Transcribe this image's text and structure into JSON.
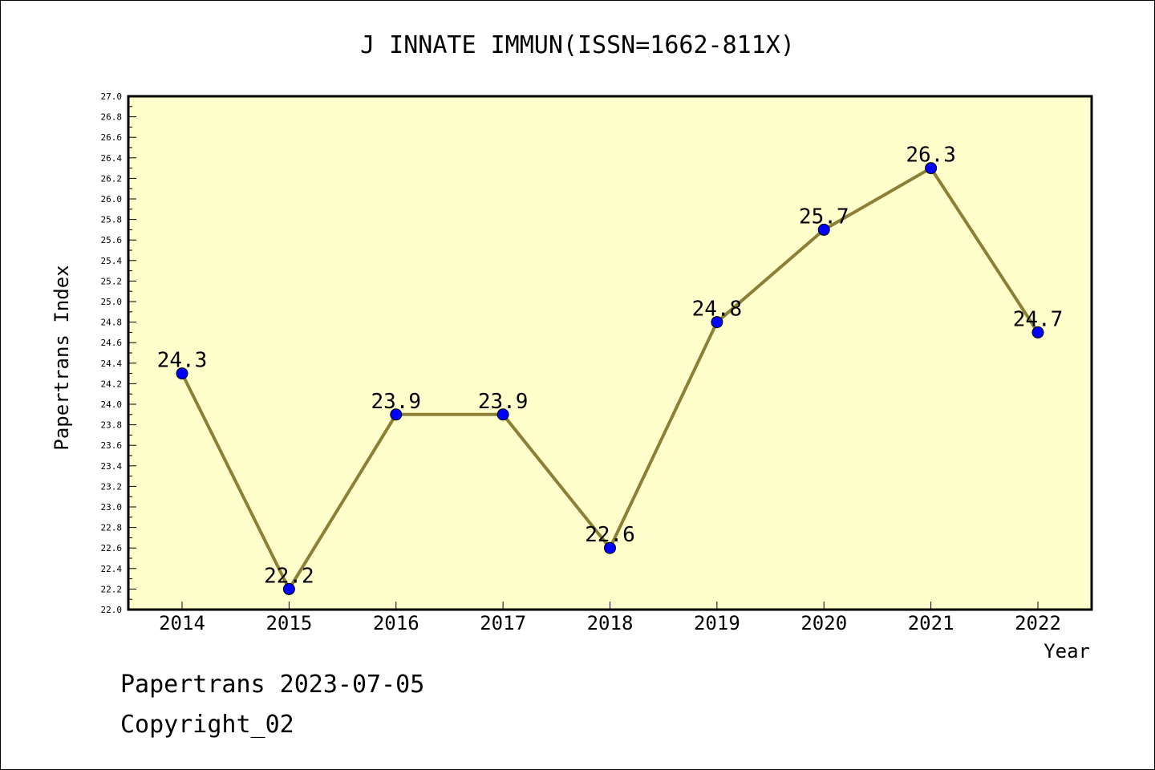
{
  "chart_data": {
    "type": "line",
    "title": "J INNATE IMMUN(ISSN=1662-811X)",
    "xlabel": "Year",
    "ylabel": "Papertrans Index",
    "categories": [
      "2014",
      "2015",
      "2016",
      "2017",
      "2018",
      "2019",
      "2020",
      "2021",
      "2022"
    ],
    "values": [
      24.3,
      22.2,
      23.9,
      23.9,
      22.6,
      24.8,
      25.7,
      26.3,
      24.7
    ],
    "data_labels": [
      "24.3",
      "22.2",
      "23.9",
      "23.9",
      "22.6",
      "24.8",
      "25.7",
      "26.3",
      "24.7"
    ],
    "ylim": [
      22.0,
      27.0
    ],
    "ytick_step": 0.2,
    "grid": false,
    "colors": {
      "plot_background": "#ffffcc",
      "line": "#8b8036",
      "marker": "#0000ff"
    }
  },
  "footer": {
    "date_line": "Papertrans 2023-07-05",
    "copyright": "Copyright_02"
  }
}
